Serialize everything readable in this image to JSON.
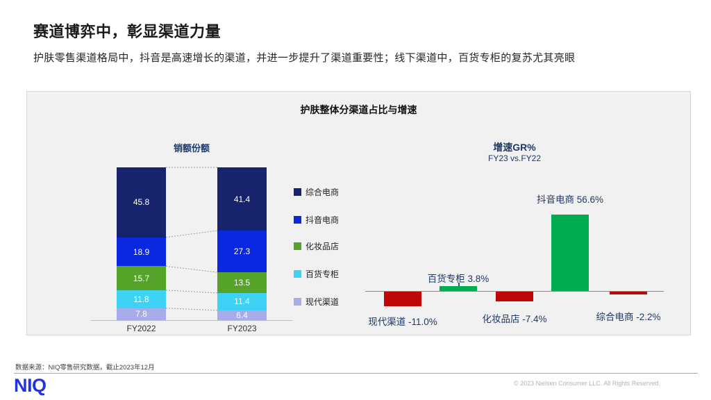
{
  "slide": {
    "title": "赛道博弈中，彰显渠道力量",
    "subtitle": "护肤零售渠道格局中，抖音是高速增长的渠道，并进一步提升了渠道重要性；线下渠道中，百货专柜的复苏尤其亮眼"
  },
  "panel": {
    "title": "护肤整体分渠道占比与增速"
  },
  "chart_data": [
    {
      "type": "bar",
      "subtype": "stacked-100-column",
      "title": "销额份额",
      "categories": [
        "FY2022",
        "FY2023"
      ],
      "series": [
        {
          "name": "综合电商",
          "color": "#17246d",
          "values": [
            45.8,
            41.4
          ]
        },
        {
          "name": "抖音电商",
          "color": "#0a28e0",
          "values": [
            18.9,
            27.3
          ]
        },
        {
          "name": "化妆品店",
          "color": "#56a32a",
          "values": [
            15.7,
            13.5
          ]
        },
        {
          "name": "百货专柜",
          "color": "#3ed2f5",
          "values": [
            11.8,
            11.4
          ]
        },
        {
          "name": "现代渠道",
          "color": "#a5ace9",
          "values": [
            7.8,
            6.4
          ]
        }
      ],
      "ylim": [
        0,
        100
      ],
      "value_labels": "inside-white",
      "legend_position": "right",
      "connector_lines": "dashed"
    },
    {
      "type": "bar",
      "subtype": "column",
      "title": "增速GR%",
      "subtitle": "FY23 vs.FY22",
      "categories": [
        "现代渠道",
        "百货专柜",
        "化妆品店",
        "抖音电商",
        "综合电商"
      ],
      "values": [
        -11.0,
        3.8,
        -7.4,
        56.6,
        -2.2
      ],
      "labels": [
        "现代渠道 -11.0%",
        "百货专柜 3.8%",
        "化妆品店 -7.4%",
        "抖音电商 56.6%",
        "综合电商 -2.2%"
      ],
      "positive_color": "#00ac50",
      "negative_color": "#bf0707",
      "label_color": "#1f3864"
    }
  ],
  "footer": {
    "source": "数据来源：NIQ零售研究数据，截止2023年12月",
    "logo": "NIQ",
    "copyright": "© 2023 Nielsen Consumer LLC. All Rights Reserved."
  }
}
